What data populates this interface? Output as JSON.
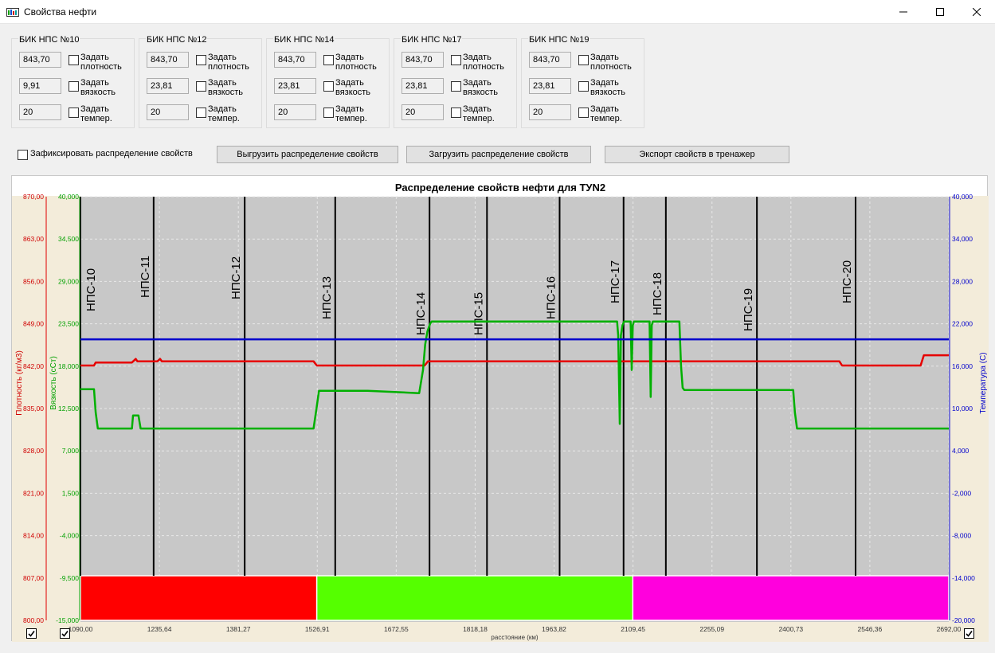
{
  "window": {
    "title": "Свойства нефти",
    "icon": "app-window-icon"
  },
  "stations": [
    {
      "title": "БИК НПС №10",
      "density": "843,70",
      "viscosity": "9,91",
      "temp": "20",
      "set_density": "Задать плотность",
      "set_viscosity": "Задать вязкость",
      "set_temp": "Задать темпер."
    },
    {
      "title": "БИК НПС №12",
      "density": "843,70",
      "viscosity": "23,81",
      "temp": "20",
      "set_density": "Задать плотность",
      "set_viscosity": "Задать вязкость",
      "set_temp": "Задать темпер."
    },
    {
      "title": "БИК НПС №14",
      "density": "843,70",
      "viscosity": "23,81",
      "temp": "20",
      "set_density": "Задать плотность",
      "set_viscosity": "Задать вязкость",
      "set_temp": "Задать темпер."
    },
    {
      "title": "БИК НПС №17",
      "density": "843,70",
      "viscosity": "23,81",
      "temp": "20",
      "set_density": "Задать плотность",
      "set_viscosity": "Задать вязкость",
      "set_temp": "Задать темпер."
    },
    {
      "title": "БИК НПС №19",
      "density": "843,70",
      "viscosity": "23,81",
      "temp": "20",
      "set_density": "Задать плотность",
      "set_viscosity": "Задать вязкость",
      "set_temp": "Задать темпер."
    }
  ],
  "controls": {
    "fix_label": "Зафиксировать распределение свойств",
    "unload_button": "Выгрузить распределение свойств",
    "load_button": "Загрузить распределение свойств",
    "export_button": "Экспорт свойств в тренажер"
  },
  "chart_data": {
    "type": "line",
    "title": "Распределение свойств нефти для TУN2",
    "xlabel": "расстояние (км)",
    "xlim": [
      1090.0,
      2692.0
    ],
    "x_ticks": [
      "1090,00",
      "1235,64",
      "1381,27",
      "1526,91",
      "1672,55",
      "1818,18",
      "1963,82",
      "2109,45",
      "2255,09",
      "2400,73",
      "2546,36",
      "2692,00"
    ],
    "y_axes": [
      {
        "label": "Плотность (кг/м3)",
        "color": "#e60000",
        "ylim": [
          800,
          870
        ],
        "ticks": [
          "870,00",
          "863,00",
          "856,00",
          "849,00",
          "842,00",
          "835,00",
          "828,00",
          "821,00",
          "814,00",
          "807,00",
          "800,00"
        ]
      },
      {
        "label": "Вязкость (сСт)",
        "color": "#00b000",
        "ylim": [
          -15,
          40
        ],
        "ticks": [
          "40,000",
          "34,500",
          "29,000",
          "23,500",
          "18,000",
          "12,500",
          "7,000",
          "1,500",
          "-4,000",
          "-9,500",
          "-15,000"
        ]
      },
      {
        "label": "Температура (С)",
        "color": "#0000cc",
        "ylim": [
          -20,
          40
        ],
        "ticks": [
          "40,000",
          "34,000",
          "28,000",
          "22,000",
          "16,000",
          "10,000",
          "4,000",
          "-2,000",
          "-8,000",
          "-14,000",
          "-20,000"
        ]
      }
    ],
    "stations": [
      {
        "name": "НПС-10",
        "x": 1090
      },
      {
        "name": "НПС-11",
        "x": 1225
      },
      {
        "name": "НПС-12",
        "x": 1393
      },
      {
        "name": "НПС-13",
        "x": 1560
      },
      {
        "name": "НПС-14",
        "x": 1734
      },
      {
        "name": "НПС-15",
        "x": 1840
      },
      {
        "name": "НПС-16",
        "x": 1974
      },
      {
        "name": "НПС-17",
        "x": 2092
      },
      {
        "name": "НПС-18",
        "x": 2170
      },
      {
        "name": "НПС-19",
        "x": 2338
      },
      {
        "name": "НПС-20",
        "x": 2520
      }
    ],
    "series": [
      {
        "name": "Плотность (кг/м3)",
        "axis": 0,
        "color": "#e60000",
        "x": [
          1090,
          1115,
          1118,
          1185,
          1192,
          1195,
          1232,
          1237,
          1240,
          1400,
          1520,
          1526,
          1530,
          1725,
          1731,
          2490,
          2495,
          2640,
          2646,
          2692
        ],
        "y": [
          842.1,
          842.1,
          842.6,
          842.6,
          843.2,
          842.8,
          842.8,
          843.2,
          842.8,
          842.8,
          842.8,
          842.1,
          842.1,
          842.1,
          842.8,
          842.8,
          842.1,
          842.1,
          843.8,
          843.8
        ]
      },
      {
        "name": "Вязкость (сСт)",
        "axis": 1,
        "color": "#00b000",
        "x": [
          1090,
          1115,
          1118,
          1122,
          1185,
          1187,
          1197,
          1201,
          1245,
          1400,
          1520,
          1525,
          1530,
          1620,
          1715,
          1722,
          1726,
          1730,
          1735,
          1738,
          1800,
          2000,
          2080,
          2082,
          2085,
          2087,
          2090,
          2093,
          2095,
          2105,
          2107,
          2109,
          2111,
          2113,
          2140,
          2142,
          2144,
          2146,
          2148,
          2152,
          2195,
          2198,
          2201,
          2204,
          2300,
          2405,
          2408,
          2412,
          2692
        ],
        "y": [
          15.0,
          15.0,
          12.0,
          9.9,
          9.9,
          11.6,
          11.6,
          9.9,
          9.9,
          9.9,
          9.9,
          12.3,
          14.8,
          14.8,
          14.5,
          17.5,
          20.8,
          22.5,
          23.5,
          23.8,
          23.8,
          23.8,
          23.8,
          22.0,
          10.5,
          22.0,
          23.3,
          23.8,
          23.8,
          23.8,
          17.5,
          23.3,
          23.8,
          23.8,
          23.8,
          14.0,
          23.3,
          23.8,
          23.8,
          23.8,
          23.8,
          18.0,
          15.2,
          14.9,
          14.9,
          14.9,
          12.0,
          9.9,
          9.9
        ]
      },
      {
        "name": "Температура (С)",
        "axis": 2,
        "color": "#0000cc",
        "x": [
          1090,
          2692
        ],
        "y": [
          19.8,
          19.8
        ]
      }
    ],
    "bands": [
      {
        "x0": 1090,
        "x1": 1526,
        "color": "#ff0000"
      },
      {
        "x0": 1526,
        "x1": 2109,
        "color": "#55ff00"
      },
      {
        "x0": 2109,
        "x1": 2692,
        "color": "#ff00dd"
      }
    ]
  }
}
